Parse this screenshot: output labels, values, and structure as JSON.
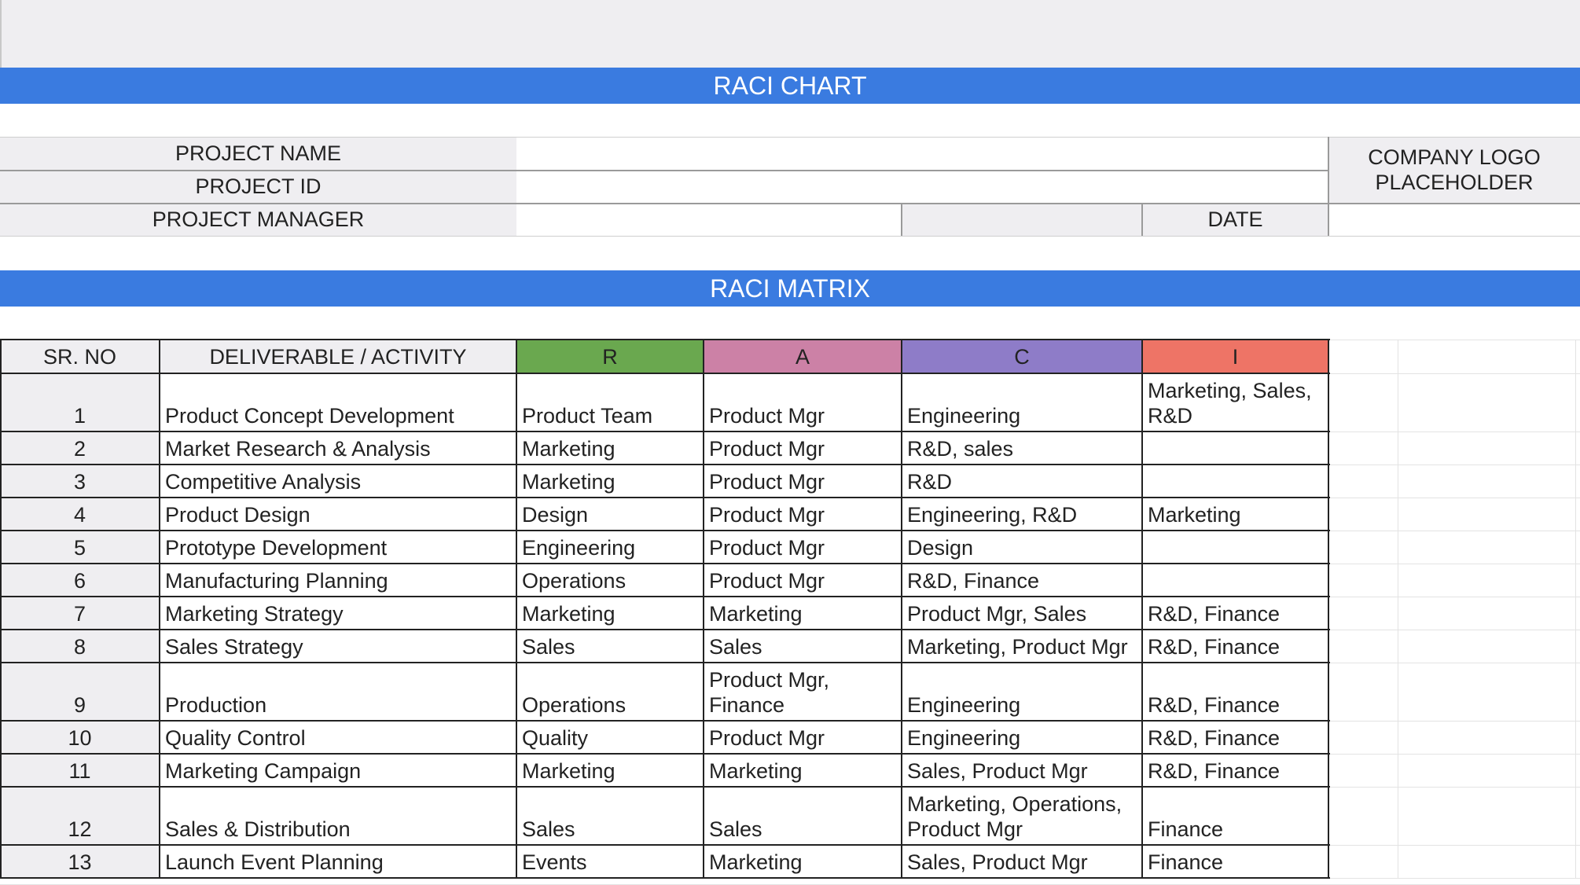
{
  "header": {
    "title": "RACI CHART",
    "matrix_title": "RACI MATRIX"
  },
  "project_info": {
    "name_label": "PROJECT NAME",
    "name_value": "",
    "id_label": "PROJECT ID",
    "id_value": "",
    "manager_label": "PROJECT MANAGER",
    "manager_value": "",
    "date_label": "DATE",
    "date_value": "",
    "logo_placeholder": "COMPANY LOGO\nPLACEHOLDER"
  },
  "matrix": {
    "columns": [
      "SR. NO",
      "DELIVERABLE / ACTIVITY",
      "R",
      "A",
      "C",
      "I"
    ],
    "column_colors": {
      "R": "#6aa84f",
      "A": "#cc81a6",
      "C": "#8e7cc8",
      "I": "#ee7466"
    },
    "rows": [
      {
        "sr": "1",
        "activity": "Product Concept Development",
        "r": "Product Team",
        "a": "Product Mgr",
        "c": "Engineering",
        "i": "Marketing, Sales,\nR&D"
      },
      {
        "sr": "2",
        "activity": "Market Research & Analysis",
        "r": "Marketing",
        "a": "Product Mgr",
        "c": "R&D, sales",
        "i": ""
      },
      {
        "sr": "3",
        "activity": "Competitive Analysis",
        "r": "Marketing",
        "a": "Product Mgr",
        "c": "R&D",
        "i": ""
      },
      {
        "sr": "4",
        "activity": "Product Design",
        "r": "Design",
        "a": "Product Mgr",
        "c": "Engineering, R&D",
        "i": "Marketing"
      },
      {
        "sr": "5",
        "activity": "Prototype Development",
        "r": "Engineering",
        "a": "Product Mgr",
        "c": "Design",
        "i": ""
      },
      {
        "sr": "6",
        "activity": "Manufacturing Planning",
        "r": "Operations",
        "a": "Product Mgr",
        "c": "R&D, Finance",
        "i": ""
      },
      {
        "sr": "7",
        "activity": "Marketing Strategy",
        "r": "Marketing",
        "a": "Marketing",
        "c": "Product Mgr, Sales",
        "i": "R&D, Finance"
      },
      {
        "sr": "8",
        "activity": "Sales Strategy",
        "r": "Sales",
        "a": "Sales",
        "c": "Marketing, Product Mgr",
        "i": "R&D, Finance"
      },
      {
        "sr": "9",
        "activity": "Production",
        "r": "Operations",
        "a": "Product Mgr,\nFinance",
        "c": "Engineering",
        "i": "R&D, Finance"
      },
      {
        "sr": "10",
        "activity": "Quality Control",
        "r": "Quality",
        "a": "Product Mgr",
        "c": "Engineering",
        "i": "R&D, Finance"
      },
      {
        "sr": "11",
        "activity": "Marketing Campaign",
        "r": "Marketing",
        "a": "Marketing",
        "c": "Sales, Product Mgr",
        "i": "R&D, Finance"
      },
      {
        "sr": "12",
        "activity": "Sales & Distribution",
        "r": "Sales",
        "a": "Sales",
        "c": "Marketing, Operations,\nProduct Mgr",
        "i": "Finance"
      },
      {
        "sr": "13",
        "activity": "Launch Event Planning",
        "r": "Events",
        "a": "Marketing",
        "c": "Sales, Product Mgr",
        "i": "Finance"
      }
    ]
  }
}
